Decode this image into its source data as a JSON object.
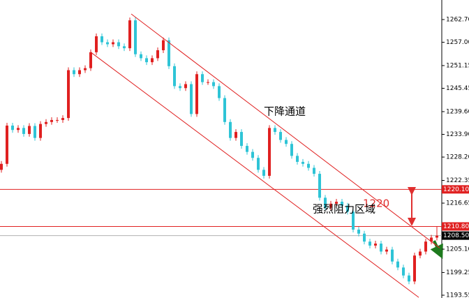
{
  "chart_data": {
    "type": "candlestick",
    "up_color": "#e02020",
    "down_color": "#2ec4d6",
    "ylim": [
      1192.85,
      1267.6
    ],
    "yticks": [
      {
        "value": 1262.7,
        "label": "1262.70"
      },
      {
        "value": 1257,
        "label": "1257.00"
      },
      {
        "value": 1251.15,
        "label": "1251.15"
      },
      {
        "value": 1245.45,
        "label": "1245.45"
      },
      {
        "value": 1239.6,
        "label": "1239.60"
      },
      {
        "value": 1233.9,
        "label": "1233.90"
      },
      {
        "value": 1228.2,
        "label": "1228.20"
      },
      {
        "value": 1222.35,
        "label": "1222.35"
      },
      {
        "value": 1216.65,
        "label": "1216.65"
      },
      {
        "value": 1210.8,
        "label": "1210.80"
      },
      {
        "value": 1205.1,
        "label": "1205.10"
      },
      {
        "value": 1199.25,
        "label": "1199.25"
      },
      {
        "value": 1193.55,
        "label": "1193.55"
      }
    ],
    "candles": [
      [
        1225.0,
        1227.2,
        1224.3,
        1226.5
      ],
      [
        1226.5,
        1236.8,
        1225.8,
        1236.1
      ],
      [
        1236.1,
        1236.8,
        1234.3,
        1235.0
      ],
      [
        1235.0,
        1236.2,
        1234.3,
        1235.5
      ],
      [
        1235.5,
        1236.2,
        1233.3,
        1234.0
      ],
      [
        1234.0,
        1236.7,
        1233.3,
        1236.0
      ],
      [
        1236.0,
        1236.7,
        1232.3,
        1233.0
      ],
      [
        1233.0,
        1237.2,
        1232.3,
        1236.5
      ],
      [
        1236.5,
        1237.7,
        1235.8,
        1237.0
      ],
      [
        1237.0,
        1238.2,
        1236.3,
        1237.5
      ],
      [
        1237.5,
        1238.2,
        1236.8,
        1237.5
      ],
      [
        1237.5,
        1238.7,
        1236.8,
        1238.0
      ],
      [
        1238.0,
        1250.7,
        1237.3,
        1250.0
      ],
      [
        1250.0,
        1250.7,
        1248.3,
        1249.0
      ],
      [
        1249.0,
        1250.7,
        1248.3,
        1250.0
      ],
      [
        1250.0,
        1251.2,
        1249.3,
        1250.5
      ],
      [
        1250.5,
        1255.2,
        1249.8,
        1254.5
      ],
      [
        1254.5,
        1259.2,
        1253.8,
        1258.5
      ],
      [
        1258.5,
        1259.2,
        1256.3,
        1257.0
      ],
      [
        1257.0,
        1257.7,
        1255.8,
        1256.5
      ],
      [
        1256.5,
        1257.7,
        1255.8,
        1257.0
      ],
      [
        1257.0,
        1257.7,
        1255.3,
        1256.0
      ],
      [
        1256.0,
        1256.7,
        1254.8,
        1255.5
      ],
      [
        1255.5,
        1263.2,
        1254.8,
        1262.5
      ],
      [
        1262.5,
        1263.2,
        1253.3,
        1254.0
      ],
      [
        1254.0,
        1254.7,
        1252.3,
        1253.0
      ],
      [
        1253.0,
        1253.7,
        1251.3,
        1252.0
      ],
      [
        1252.0,
        1253.7,
        1251.3,
        1253.0
      ],
      [
        1253.0,
        1255.7,
        1252.3,
        1255.0
      ],
      [
        1255.0,
        1258.2,
        1254.3,
        1257.5
      ],
      [
        1257.5,
        1258.2,
        1250.3,
        1251.0
      ],
      [
        1251.0,
        1251.7,
        1245.3,
        1246.0
      ],
      [
        1246.0,
        1246.7,
        1244.8,
        1245.5
      ],
      [
        1245.5,
        1247.2,
        1244.8,
        1246.5
      ],
      [
        1246.5,
        1247.2,
        1238.3,
        1239.0
      ],
      [
        1239.0,
        1249.7,
        1238.3,
        1249.0
      ],
      [
        1249.0,
        1249.7,
        1246.3,
        1247.0
      ],
      [
        1247.0,
        1247.7,
        1246.3,
        1247.0
      ],
      [
        1247.0,
        1247.7,
        1245.3,
        1246.0
      ],
      [
        1246.0,
        1246.7,
        1242.3,
        1243.0
      ],
      [
        1243.0,
        1243.7,
        1236.3,
        1237.0
      ],
      [
        1237.0,
        1237.7,
        1232.3,
        1233.0
      ],
      [
        1233.0,
        1235.2,
        1232.3,
        1234.5
      ],
      [
        1234.5,
        1235.2,
        1230.3,
        1231.0
      ],
      [
        1231.0,
        1231.7,
        1228.8,
        1229.5
      ],
      [
        1229.5,
        1230.2,
        1227.3,
        1228.0
      ],
      [
        1228.0,
        1228.7,
        1224.3,
        1225.0
      ],
      [
        1225.0,
        1225.7,
        1222.8,
        1223.5
      ],
      [
        1223.5,
        1236.2,
        1222.8,
        1235.5
      ],
      [
        1235.5,
        1236.2,
        1233.8,
        1234.5
      ],
      [
        1234.5,
        1235.2,
        1231.8,
        1232.5
      ],
      [
        1232.5,
        1233.2,
        1230.8,
        1231.5
      ],
      [
        1231.5,
        1232.2,
        1227.8,
        1228.5
      ],
      [
        1228.5,
        1229.2,
        1226.3,
        1227.0
      ],
      [
        1227.0,
        1227.7,
        1225.8,
        1226.5
      ],
      [
        1226.5,
        1227.2,
        1224.8,
        1225.5
      ],
      [
        1225.5,
        1226.2,
        1223.3,
        1224.0
      ],
      [
        1224.0,
        1224.7,
        1217.3,
        1218.0
      ],
      [
        1218.0,
        1218.7,
        1214.8,
        1215.5
      ],
      [
        1215.5,
        1217.2,
        1214.8,
        1216.5
      ],
      [
        1216.5,
        1217.7,
        1215.8,
        1217.0
      ],
      [
        1217.0,
        1217.7,
        1215.3,
        1216.0
      ],
      [
        1216.0,
        1216.7,
        1213.8,
        1214.5
      ],
      [
        1214.5,
        1215.2,
        1209.3,
        1210.0
      ],
      [
        1210.0,
        1210.7,
        1208.3,
        1209.0
      ],
      [
        1209.0,
        1209.7,
        1206.3,
        1207.0
      ],
      [
        1207.0,
        1207.7,
        1205.3,
        1206.0
      ],
      [
        1206.0,
        1207.2,
        1205.3,
        1206.5
      ],
      [
        1206.5,
        1207.2,
        1203.8,
        1204.5
      ],
      [
        1204.5,
        1205.7,
        1203.8,
        1205.0
      ],
      [
        1205.0,
        1205.7,
        1201.3,
        1202.0
      ],
      [
        1202.0,
        1202.7,
        1199.8,
        1200.5
      ],
      [
        1200.5,
        1201.2,
        1197.8,
        1198.5
      ],
      [
        1198.5,
        1199.2,
        1196.3,
        1197.0
      ],
      [
        1197.0,
        1204.2,
        1196.3,
        1203.5
      ],
      [
        1203.5,
        1205.2,
        1202.8,
        1204.5
      ],
      [
        1204.5,
        1207.7,
        1203.8,
        1207.0
      ],
      [
        1207.0,
        1208.7,
        1206.3,
        1208.0
      ],
      [
        1208.0,
        1210.7,
        1207.3,
        1208.5
      ]
    ],
    "trendlines": [
      {
        "x": [
          23.25,
          78.5
        ],
        "y": [
          1264.1,
          1205.4
        ],
        "color": "#e02020"
      },
      {
        "x": [
          16,
          74.75
        ],
        "y": [
          1254.5,
          1193.0
        ],
        "color": "#e02020"
      }
    ],
    "levels": [
      {
        "value": 1220.1,
        "label": "1220.10",
        "color": "#e02020"
      },
      {
        "value": 1210.8,
        "label": "1210.80",
        "color": "#e02020"
      },
      {
        "value": 1208.5,
        "label": "1208.50",
        "color": "#000000"
      }
    ],
    "annotations": [
      {
        "text": "下降通道",
        "color": "#000000"
      },
      {
        "text": "1220",
        "color": "#e03030"
      },
      {
        "text": "强烈阻力区域",
        "color": "#000000"
      }
    ]
  }
}
